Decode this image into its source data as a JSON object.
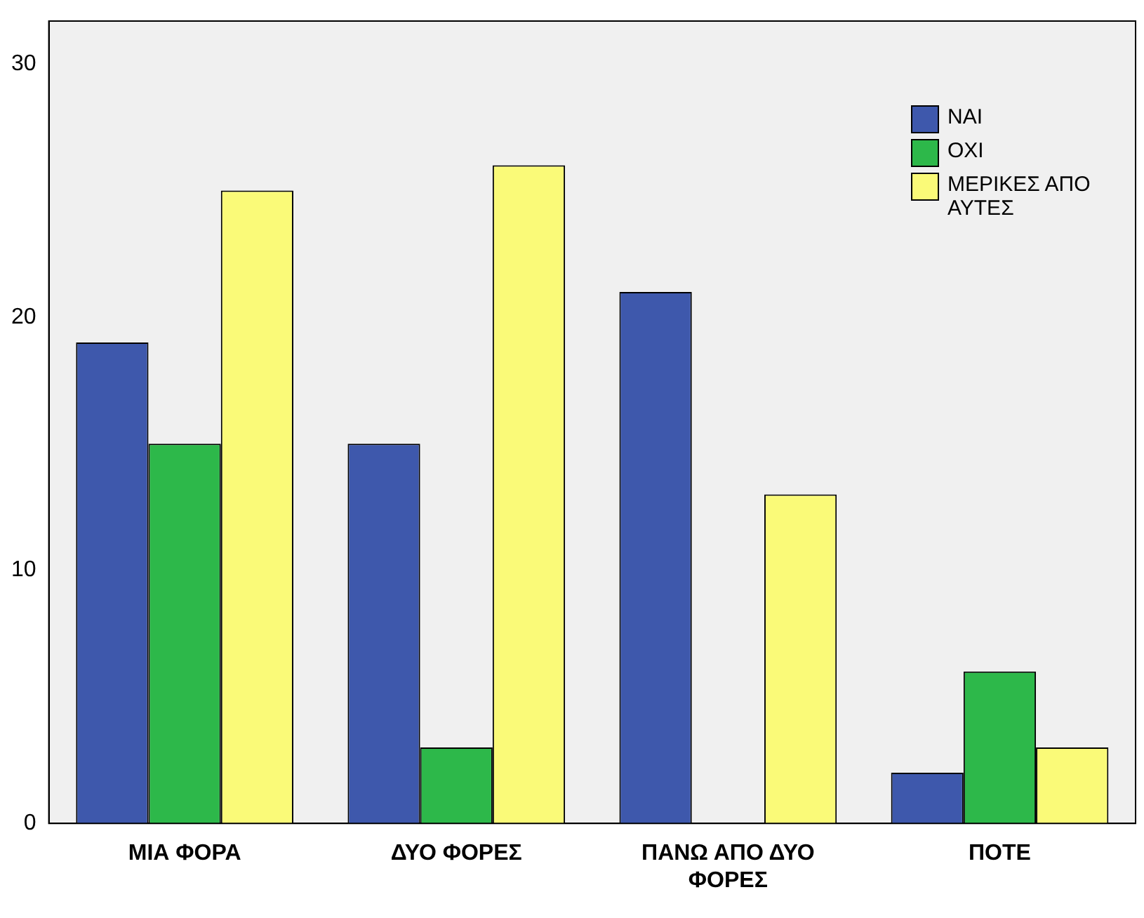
{
  "chart_data": {
    "type": "bar",
    "categories": [
      "ΜΙΑ ΦΟΡΑ",
      "ΔΥΟ ΦΟΡΕΣ",
      "ΠΑΝΩ ΑΠΟ ΔΥΟ ΦΟΡΕΣ",
      "ΠΟΤΕ"
    ],
    "series": [
      {
        "name": "ΝΑΙ",
        "color": "#3e58ac",
        "values": [
          19,
          15,
          21,
          2
        ]
      },
      {
        "name": "ΟΧΙ",
        "color": "#2db84a",
        "values": [
          15,
          3,
          0,
          6
        ]
      },
      {
        "name": "ΜΕΡΙΚΕΣ ΑΠΟ ΑΥΤΕΣ",
        "color": "#fafa78",
        "values": [
          25,
          26,
          13,
          3
        ]
      }
    ],
    "ylim": [
      0,
      31.7
    ],
    "yticks": [
      0,
      10,
      20,
      30
    ],
    "grid": false,
    "legend": "top right"
  }
}
